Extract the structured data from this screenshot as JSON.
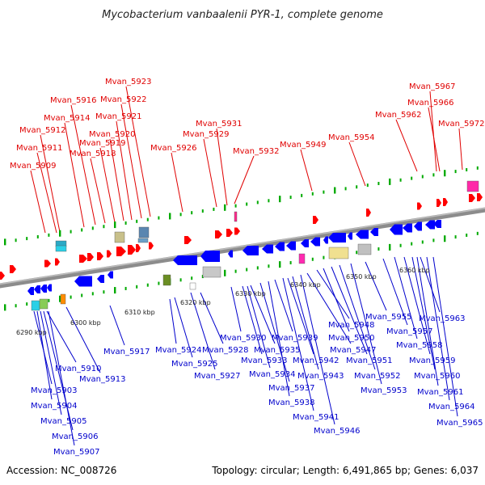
{
  "title": "Mycobacterium vanbaalenii PYR-1, complete genome",
  "footer": {
    "accession": "Accession: NC_008726",
    "summary": "Topology: circular; Length: 6,491,865 bp; Genes: 6,037"
  },
  "colors": {
    "forward_label": "#e00000",
    "reverse_label": "#0000cc",
    "forward_gene": "#ff0000",
    "reverse_gene": "#0000ff",
    "axis": "#8c8c8c",
    "tick": "#00aa00"
  },
  "kbp_labels": [
    "6290 kbp",
    "6300 kbp",
    "6310 kbp",
    "6320 kbp",
    "6330 kbp",
    "6340 kbp",
    "6350 kbp",
    "6360 kbp"
  ],
  "forward_labels": [
    "Mvan_5909",
    "Mvan_5911",
    "Mvan_5912",
    "Mvan_5914",
    "Mvan_5916",
    "Mvan_5918",
    "Mvan_5919",
    "Mvan_5920",
    "Mvan_5921",
    "Mvan_5922",
    "Mvan_5923",
    "Mvan_5926",
    "Mvan_5929",
    "Mvan_5931",
    "Mvan_5932",
    "Mvan_5949",
    "Mvan_5954",
    "Mvan_5962",
    "Mvan_5966",
    "Mvan_5967",
    "Mvan_5972"
  ],
  "reverse_labels": [
    "Mvan_5903",
    "Mvan_5904",
    "Mvan_5905",
    "Mvan_5906",
    "Mvan_5907",
    "Mvan_5910",
    "Mvan_5913",
    "Mvan_5917",
    "Mvan_5924",
    "Mvan_5925",
    "Mvan_5927",
    "Mvan_5928",
    "Mvan_5930",
    "Mvan_5933",
    "Mvan_5934",
    "Mvan_5935",
    "Mvan_5937",
    "Mvan_5938",
    "Mvan_5939",
    "Mvan_5941",
    "Mvan_5942",
    "Mvan_5943",
    "Mvan_5946",
    "Mvan_5947",
    "Mvan_5948",
    "Mvan_5950",
    "Mvan_5951",
    "Mvan_5952",
    "Mvan_5953",
    "Mvan_5955",
    "Mvan_5957",
    "Mvan_5958",
    "Mvan_5959",
    "Mvan_5960",
    "Mvan_5961",
    "Mvan_5963",
    "Mvan_5964",
    "Mvan_5965"
  ]
}
